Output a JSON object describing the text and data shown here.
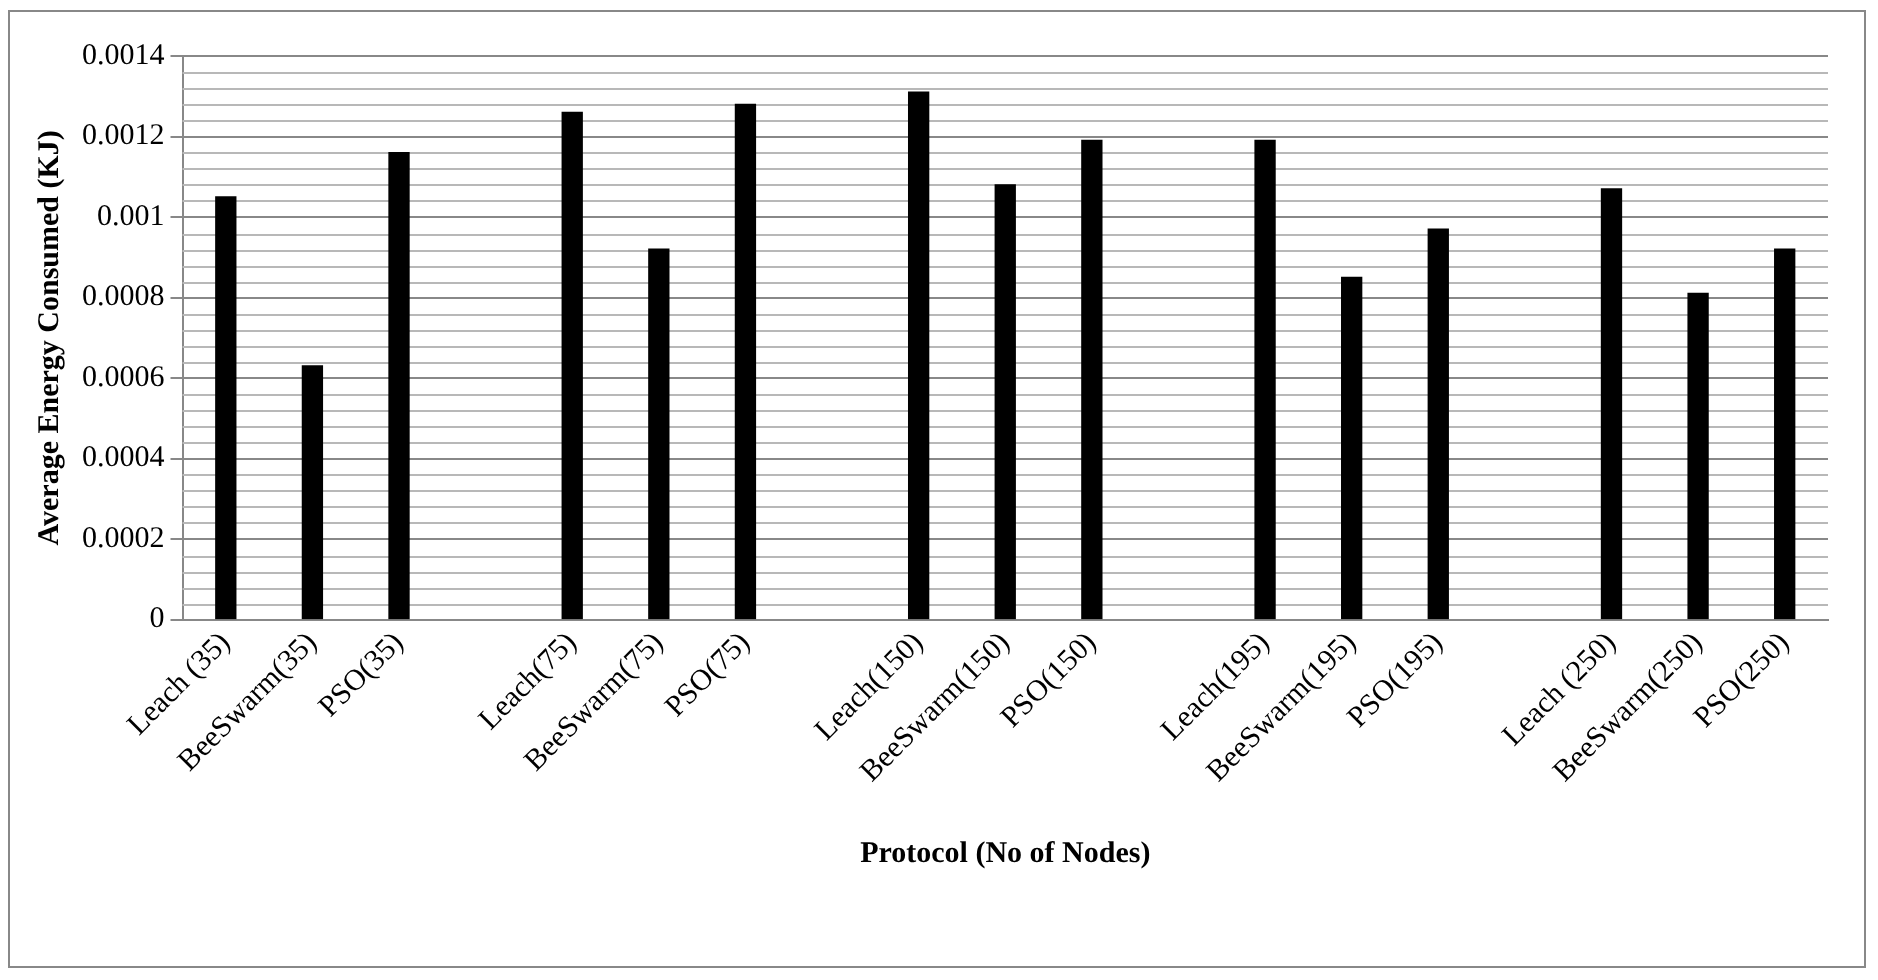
{
  "chart_data": {
    "type": "bar",
    "xlabel": "Protocol (No of Nodes)",
    "ylabel": "Average Energy Consumed (KJ)",
    "categories": [
      "Leach (35)",
      "BeeSwarm(35)",
      "PSO(35)",
      null,
      "Leach(75)",
      "BeeSwarm(75)",
      "PSO(75)",
      null,
      "Leach(150)",
      "BeeSwarm(150)",
      "PSO(150)",
      null,
      "Leach(195)",
      "BeeSwarm(195)",
      "PSO(195)",
      null,
      "Leach (250)",
      "BeeSwarm(250)",
      "PSO(250)"
    ],
    "values": [
      0.00105,
      0.00063,
      0.00116,
      null,
      0.00126,
      0.00092,
      0.00128,
      null,
      0.00131,
      0.00108,
      0.00119,
      null,
      0.00119,
      0.00085,
      0.00097,
      null,
      0.00107,
      0.00081,
      0.00092
    ],
    "color": "#000000",
    "ylim": [
      0,
      0.0014
    ],
    "yticks": [
      0,
      0.0002,
      0.0004,
      0.0006,
      0.0008,
      0.001,
      0.0012,
      0.0014
    ],
    "grid": "y",
    "legend": false
  }
}
